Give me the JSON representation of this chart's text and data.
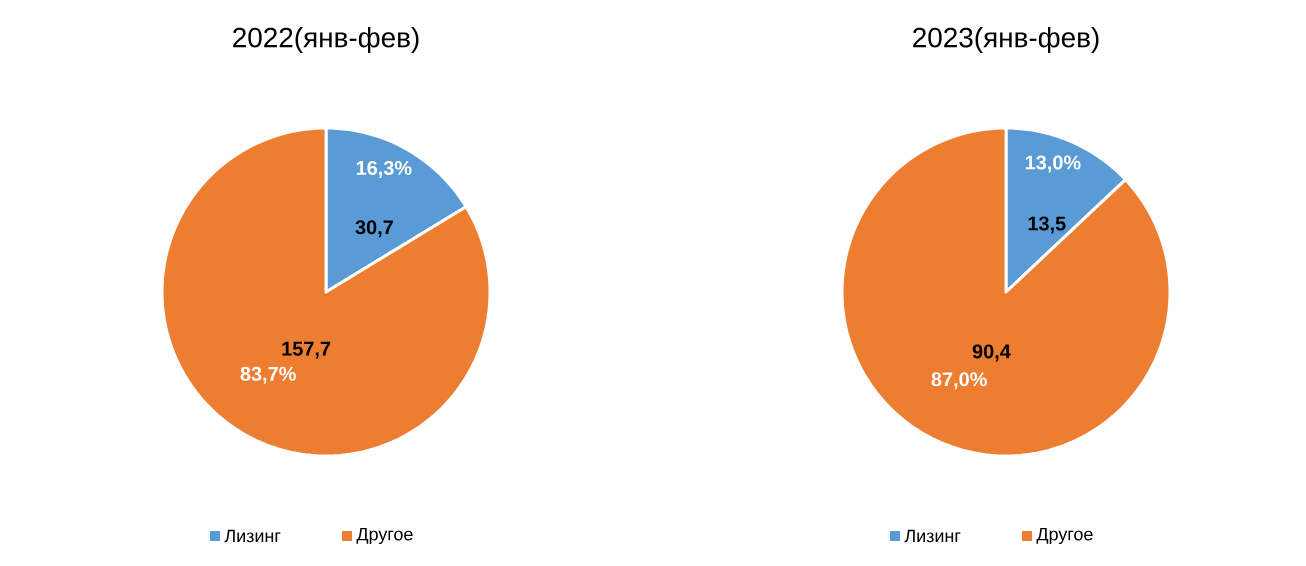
{
  "chart_data": [
    {
      "type": "pie",
      "title": "2022(янв-фев)",
      "categories": [
        "Лизинг",
        "Другое"
      ],
      "values": [
        30.7,
        157.7
      ],
      "value_labels": [
        "30,7",
        "157,7"
      ],
      "annotations": [
        "16,3%",
        "83,7%"
      ],
      "colors": [
        "#5b9bd5",
        "#ed7d31"
      ],
      "legend": "bottom"
    },
    {
      "type": "pie",
      "title": "2023(янв-фев)",
      "categories": [
        "Лизинг",
        "Другое"
      ],
      "values": [
        13.5,
        90.4
      ],
      "value_labels": [
        "13,5",
        "90,4"
      ],
      "annotations": [
        "13,0%",
        "87,0%"
      ],
      "colors": [
        "#5b9bd5",
        "#ed7d31"
      ],
      "legend": "bottom"
    }
  ]
}
